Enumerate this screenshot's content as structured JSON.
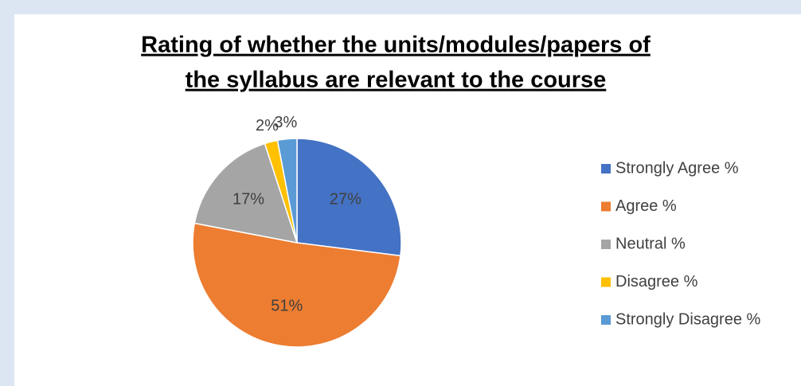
{
  "chart_data": {
    "type": "pie",
    "title": "Rating of whether the units/modules/papers of",
    "subtitle": "the syllabus are relevant to the course",
    "categories": [
      "Strongly Agree %",
      "Agree %",
      "Neutral %",
      "Disagree %",
      "Strongly Disagree %"
    ],
    "values": [
      27,
      51,
      17,
      2,
      3
    ],
    "value_labels": [
      "27%",
      "51%",
      "17%",
      "2%",
      "3%"
    ],
    "colors": [
      "#4472c4",
      "#ed7d31",
      "#a5a5a5",
      "#ffc000",
      "#5b9bd5"
    ],
    "legend": "right"
  }
}
